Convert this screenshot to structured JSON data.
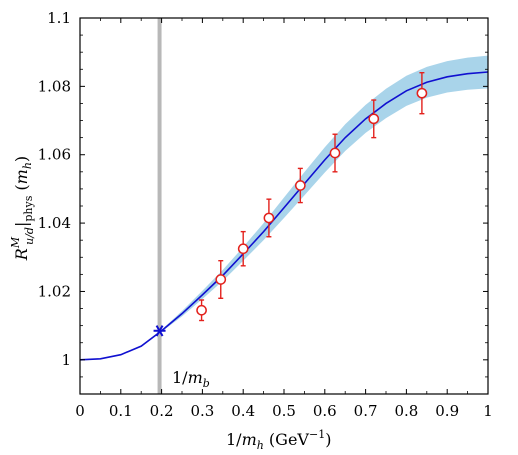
{
  "chart_data": {
    "type": "scatter",
    "xlabel": "1/m_h (GeV^-1)",
    "ylabel": "R^M_{u/d}|_phys (m_h)",
    "xlim": [
      0,
      1
    ],
    "ylim": [
      0.99,
      1.1
    ],
    "x_ticks": [
      "0",
      "0.1",
      "0.2",
      "0.3",
      "0.4",
      "0.5",
      "0.6",
      "0.7",
      "0.8",
      "0.9",
      "1"
    ],
    "y_ticks": [
      "1",
      "1.02",
      "1.04",
      "1.06",
      "1.08",
      "1.1"
    ],
    "grid": false,
    "legend": "none",
    "series": [
      {
        "kind": "data points",
        "color": "#e3211c",
        "marker": "open-circle",
        "x": [
          0.298,
          0.345,
          0.4,
          0.463,
          0.54,
          0.625,
          0.72,
          0.838
        ],
        "y": [
          1.0145,
          1.0235,
          1.0325,
          1.0415,
          1.051,
          1.0605,
          1.0705,
          1.078
        ],
        "yerr": [
          0.003,
          0.0055,
          0.005,
          0.0055,
          0.005,
          0.0055,
          0.0055,
          0.006
        ]
      },
      {
        "kind": "fit curve with error band",
        "color": "#1010d0",
        "band_color": "#a9d4ea",
        "x": [
          0.0,
          0.05,
          0.1,
          0.15,
          0.2,
          0.25,
          0.3,
          0.35,
          0.4,
          0.45,
          0.5,
          0.55,
          0.6,
          0.65,
          0.7,
          0.75,
          0.8,
          0.85,
          0.9,
          0.95,
          1.0
        ],
        "y": [
          1.0,
          1.0003,
          1.0015,
          1.004,
          1.0085,
          1.0135,
          1.019,
          1.0247,
          1.031,
          1.0375,
          1.0445,
          1.0515,
          1.0585,
          1.065,
          1.0705,
          1.075,
          1.0787,
          1.0812,
          1.0828,
          1.0837,
          1.0842
        ],
        "band_halfwidth": [
          0.0,
          0.0,
          0.0001,
          0.0002,
          0.0003,
          0.0008,
          0.0012,
          0.0016,
          0.002,
          0.0025,
          0.003,
          0.0034,
          0.0037,
          0.0039,
          0.0041,
          0.0043,
          0.0044,
          0.0045,
          0.0046,
          0.0047,
          0.0048
        ]
      }
    ],
    "markers": [
      {
        "label": "1/m_b",
        "x": 0.195,
        "color": "#b8b8b8",
        "type": "vertical-line"
      },
      {
        "x": 0.195,
        "y": 1.0085,
        "color": "#1010d0",
        "type": "asterisk"
      }
    ]
  }
}
